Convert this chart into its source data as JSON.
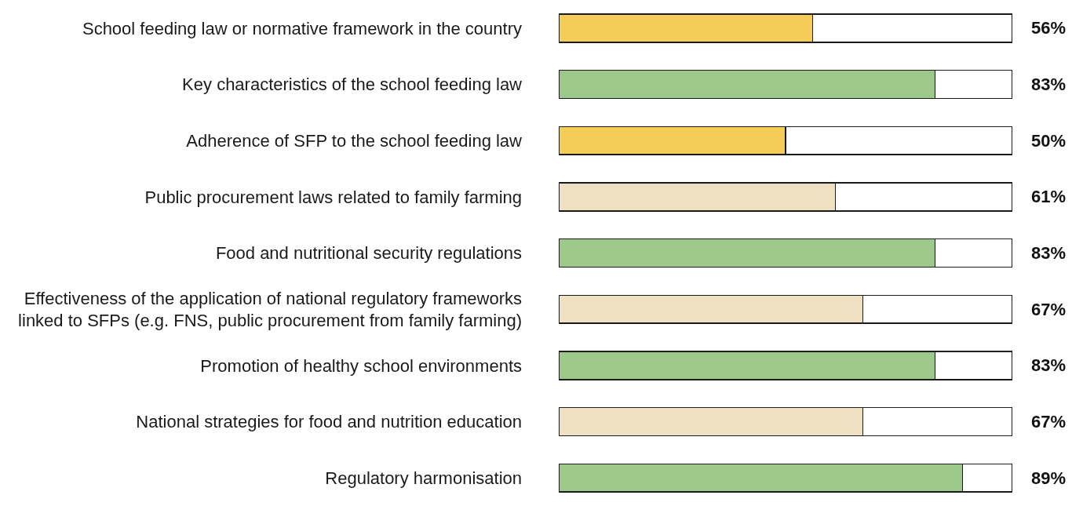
{
  "chart_data": {
    "type": "bar",
    "orientation": "horizontal",
    "stacked": true,
    "categories": [
      "School feeding law or normative framework in the country",
      "Key characteristics of the school feeding law",
      "Adherence of SFP to the school feeding law",
      "Public procurement laws related to family farming",
      "Food and nutritional security regulations",
      "Effectiveness of the application of national regulatory frameworks linked to SFPs (e.g. FNS, public procurement from family farming)",
      "Promotion of healthy school environments",
      "National strategies for food and nutrition education",
      "Regulatory harmonisation"
    ],
    "series": [
      {
        "values": [
          56,
          83,
          50,
          61,
          83,
          67,
          83,
          67,
          89
        ],
        "value_labels": [
          "56%",
          "83%",
          "50%",
          "61%",
          "83%",
          "67%",
          "83%",
          "67%",
          "89%"
        ],
        "colors": [
          "#f5cc58",
          "#9cc98a",
          "#f5cc58",
          "#eee1c2",
          "#9cc98a",
          "#eee1c2",
          "#9cc98a",
          "#eee1c2",
          "#9cc98a"
        ]
      },
      {
        "values": [
          44,
          17,
          50,
          39,
          17,
          33,
          17,
          33,
          11
        ],
        "color": "#ffffff"
      }
    ],
    "xlim": [
      0,
      100
    ],
    "tick_labels": "y"
  }
}
